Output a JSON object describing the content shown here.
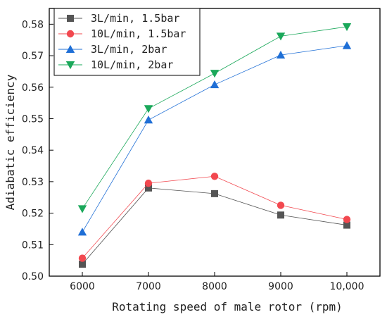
{
  "chart_data": {
    "type": "line",
    "xlabel": "Rotating speed of male rotor (rpm)",
    "ylabel": "Adiabatic efficiency",
    "x": [
      6000,
      7000,
      8000,
      9000,
      10000
    ],
    "x_tick_labels": [
      "6000",
      "7000",
      "8000",
      "9000",
      "10,000"
    ],
    "xlim": [
      5500,
      10500
    ],
    "ylim": [
      0.5,
      0.585
    ],
    "y_ticks": [
      0.5,
      0.51,
      0.52,
      0.53,
      0.54,
      0.55,
      0.56,
      0.57,
      0.58
    ],
    "y_tick_labels": [
      "0.50",
      "0.51",
      "0.52",
      "0.53",
      "0.54",
      "0.55",
      "0.56",
      "0.57",
      "0.58"
    ],
    "grid": false,
    "legend_position": "top-left",
    "series": [
      {
        "name": "3L/min, 1.5bar",
        "values": [
          0.5038,
          0.528,
          0.5262,
          0.5194,
          0.5162
        ],
        "color": "#555555",
        "marker": "square"
      },
      {
        "name": "10L/min, 1.5bar",
        "values": [
          0.5057,
          0.5295,
          0.5317,
          0.5225,
          0.518
        ],
        "color": "#f2484f",
        "marker": "circle"
      },
      {
        "name": "3L/min, 2bar",
        "values": [
          0.514,
          0.5496,
          0.5608,
          0.5702,
          0.5732
        ],
        "color": "#1f6fd6",
        "marker": "triangle-up"
      },
      {
        "name": "10L/min, 2bar",
        "values": [
          0.5214,
          0.5532,
          0.5644,
          0.5762,
          0.5792
        ],
        "color": "#1aa85a",
        "marker": "triangle-down"
      }
    ]
  }
}
